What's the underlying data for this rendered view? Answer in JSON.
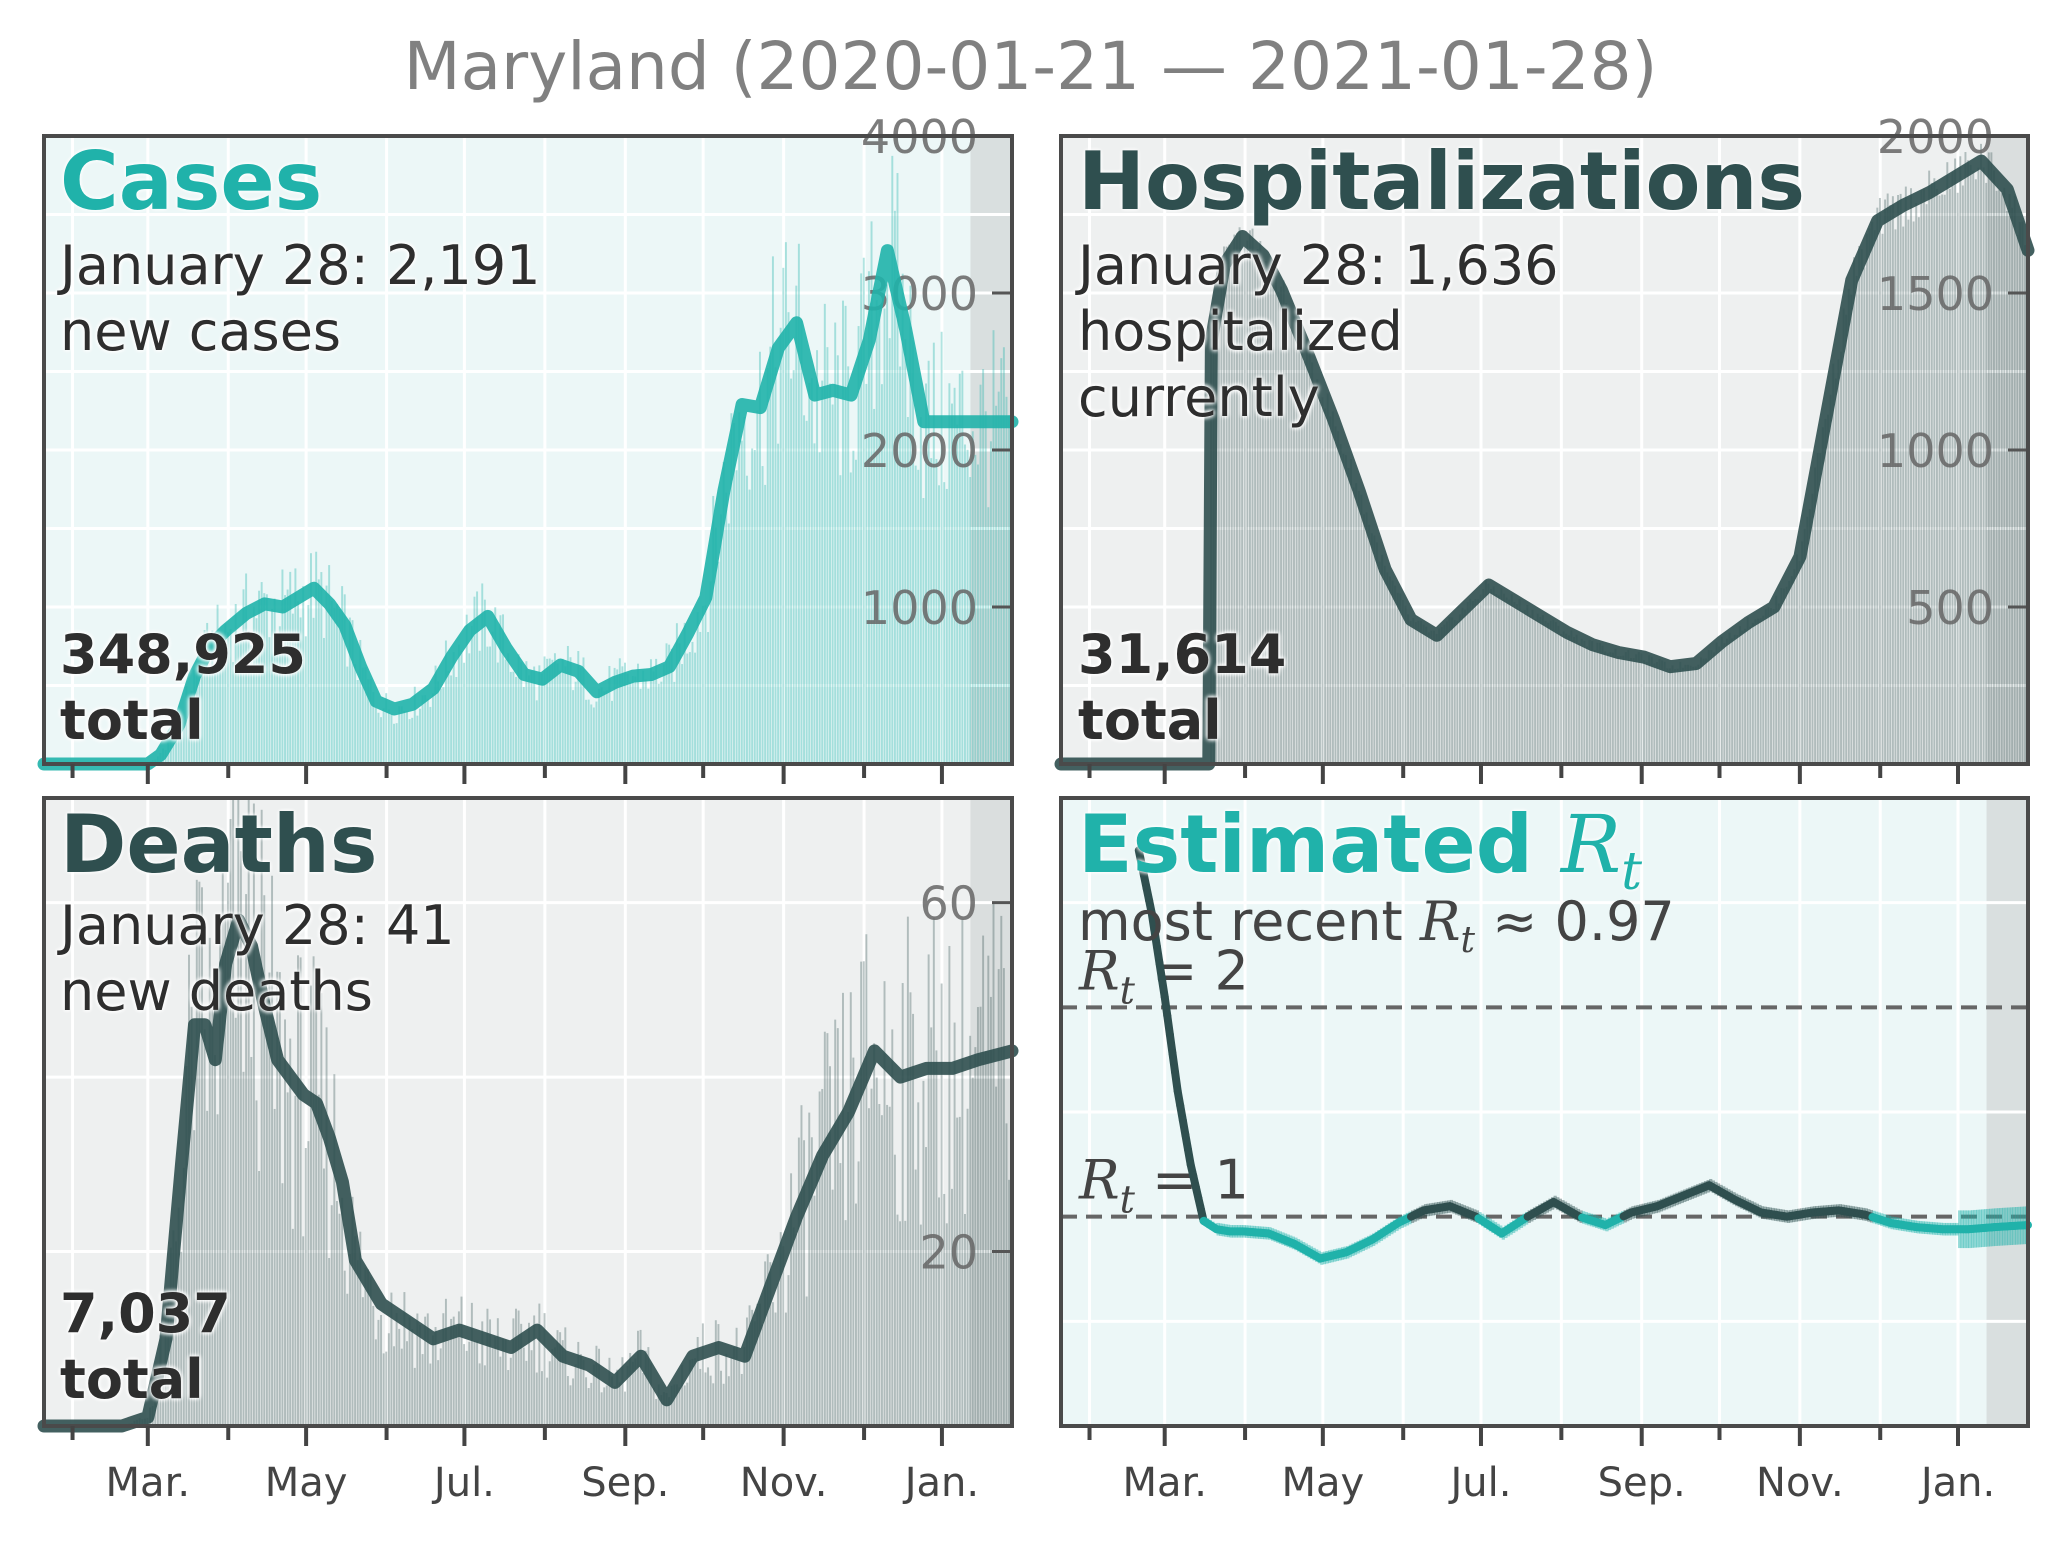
{
  "title": "Maryland (2020-01-21 — 2021-01-28)",
  "month_labels": [
    "Mar.",
    "May",
    "Jul.",
    "Sep.",
    "Nov.",
    "Jan."
  ],
  "panels": {
    "cases": {
      "title": "Cases",
      "latest_line1": "January 28: 2,191",
      "latest_line2": "new cases",
      "total_value": "348,925",
      "total_label": "total"
    },
    "hospitalizations": {
      "title": "Hospitalizations",
      "latest_line1": "January 28: 1,636",
      "latest_line2": "hospitalized",
      "latest_line3": "currently"
    },
    "hospitalizations_total": {
      "total_value": "31,614",
      "total_label": "total"
    },
    "deaths": {
      "title": "Deaths",
      "latest_line1": "January 28: 41",
      "latest_line2": "new deaths",
      "total_value": "7,037",
      "total_label": "total"
    },
    "rt": {
      "title": "Estimated",
      "title_symbol": "R",
      "title_subscript": "t",
      "subtitle_prefix": "most recent ",
      "subtitle_symbol": "R",
      "subtitle_subscript": "t",
      "subtitle_suffix": " ≈ 0.97",
      "ref_labels": [
        "R_t = 2",
        "R_t = 1"
      ]
    }
  },
  "colors": {
    "teal": "#20b2aa",
    "dark": "#2f4f4f",
    "teal_bg": "#ecf7f7",
    "gray_bg": "#eef0f0",
    "shade": "#d6dbdb",
    "title_gray": "#808080"
  },
  "chart_data": [
    {
      "type": "line",
      "name": "cases",
      "title": "Cases",
      "x_unit": "days since 2020-01-21",
      "x_range": [
        0,
        373
      ],
      "ylim": [
        0,
        4000
      ],
      "yticks": [
        1000,
        2000,
        3000,
        4000
      ],
      "series": [
        {
          "name": "7-day average new cases",
          "x": [
            0,
            40,
            45,
            52,
            58,
            64,
            70,
            78,
            85,
            92,
            99,
            104,
            110,
            116,
            122,
            128,
            135,
            142,
            150,
            157,
            164,
            171,
            178,
            185,
            192,
            199,
            206,
            213,
            220,
            227,
            234,
            241,
            248,
            255,
            262,
            269,
            276,
            283,
            290,
            297,
            304,
            311,
            318,
            325,
            332,
            339,
            346,
            353,
            360,
            366,
            373
          ],
          "y": [
            0,
            0,
            60,
            250,
            560,
            750,
            850,
            960,
            1020,
            1000,
            1070,
            1120,
            1020,
            880,
            620,
            400,
            350,
            380,
            480,
            680,
            850,
            940,
            740,
            570,
            540,
            630,
            590,
            460,
            520,
            560,
            570,
            620,
            830,
            1060,
            1740,
            2290,
            2270,
            2650,
            2810,
            2350,
            2380,
            2350,
            2700,
            3270,
            2770,
            2180,
            2180,
            2180,
            2180,
            2180,
            2180
          ]
        }
      ],
      "daily_bars_note": "thin bars show daily new cases"
    },
    {
      "type": "line",
      "name": "hospitalizations",
      "title": "Hospitalizations",
      "x_unit": "days since 2020-01-21",
      "x_range": [
        0,
        373
      ],
      "ylim": [
        0,
        2000
      ],
      "yticks": [
        500,
        1000,
        1500,
        2000
      ],
      "series": [
        {
          "name": "currently hospitalized",
          "x": [
            0,
            57,
            58,
            63,
            70,
            78,
            85,
            95,
            105,
            115,
            125,
            135,
            145,
            155,
            165,
            175,
            185,
            195,
            205,
            215,
            225,
            235,
            245,
            255,
            265,
            275,
            285,
            295,
            305,
            315,
            325,
            335,
            345,
            355,
            365,
            373
          ],
          "y": [
            0,
            0,
            1350,
            1590,
            1680,
            1620,
            1510,
            1310,
            1100,
            870,
            620,
            460,
            410,
            490,
            570,
            520,
            470,
            420,
            380,
            355,
            340,
            310,
            320,
            390,
            450,
            500,
            660,
            1100,
            1540,
            1730,
            1780,
            1820,
            1870,
            1920,
            1830,
            1636
          ]
        }
      ],
      "daily_bars_note": "thin bars show daily hospitalizations"
    },
    {
      "type": "line",
      "name": "deaths",
      "title": "Deaths",
      "x_unit": "days since 2020-01-21",
      "x_range": [
        0,
        373
      ],
      "ylim": [
        0,
        72
      ],
      "yticks": [
        20,
        60
      ],
      "series": [
        {
          "name": "7-day average new deaths",
          "x": [
            0,
            30,
            40,
            47,
            53,
            58,
            62,
            66,
            70,
            75,
            80,
            85,
            90,
            95,
            100,
            105,
            110,
            115,
            120,
            130,
            140,
            150,
            160,
            170,
            180,
            190,
            200,
            210,
            220,
            230,
            240,
            250,
            260,
            270,
            280,
            290,
            300,
            310,
            320,
            330,
            340,
            350,
            360,
            373
          ],
          "y": [
            0,
            0,
            1,
            10,
            30,
            46,
            46,
            42,
            53,
            58,
            55,
            48,
            42,
            40,
            38,
            37,
            33,
            28,
            19,
            14,
            12,
            10,
            11,
            10,
            9,
            11,
            8,
            7,
            5,
            8,
            3,
            8,
            9,
            8,
            16,
            24,
            31,
            36,
            43,
            40,
            41,
            41,
            42,
            43
          ]
        }
      ],
      "daily_bars_note": "thin bars show daily new deaths"
    },
    {
      "type": "line",
      "name": "rt",
      "title": "Estimated R_t",
      "subtitle": "most recent R_t ≈ 0.97",
      "x_unit": "days since 2020-01-21",
      "x_range": [
        0,
        373
      ],
      "ylim": [
        0.0,
        3.0
      ],
      "ref_lines": [
        2,
        1
      ],
      "series": [
        {
          "name": "R_t estimate",
          "x": [
            30,
            35,
            40,
            45,
            50,
            55,
            60,
            65,
            70,
            80,
            90,
            100,
            110,
            120,
            130,
            140,
            150,
            160,
            170,
            180,
            190,
            200,
            210,
            220,
            230,
            240,
            250,
            260,
            270,
            280,
            290,
            300,
            310,
            320,
            330,
            340,
            350,
            360,
            373
          ],
          "y": [
            2.75,
            2.45,
            2.05,
            1.6,
            1.25,
            0.98,
            0.94,
            0.93,
            0.93,
            0.92,
            0.87,
            0.8,
            0.83,
            0.89,
            0.97,
            1.03,
            1.05,
            1.0,
            0.92,
            1.0,
            1.07,
            1.0,
            0.96,
            1.02,
            1.05,
            1.1,
            1.15,
            1.08,
            1.02,
            1.0,
            1.02,
            1.03,
            1.01,
            0.97,
            0.95,
            0.94,
            0.94,
            0.95,
            0.96
          ]
        }
      ],
      "color_rule": "dark when R_t >= 1, teal when R_t < 1"
    }
  ]
}
